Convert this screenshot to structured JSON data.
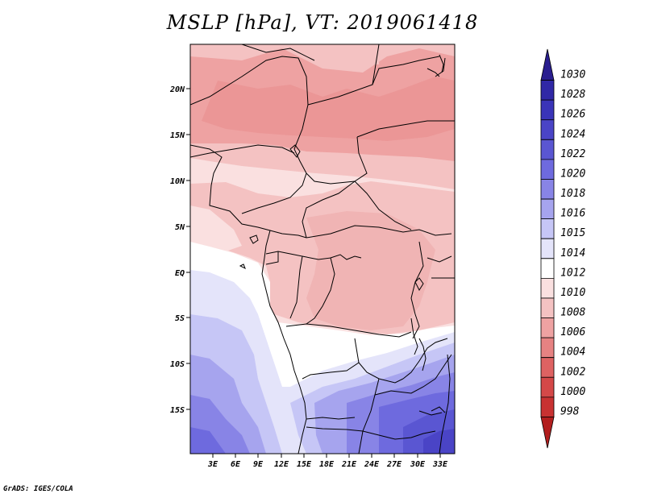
{
  "title": "MSLP [hPa], VT: 2019061418",
  "lat_labels": [
    "20N",
    "15N",
    "10N",
    "5N",
    "EQ",
    "5S",
    "10S",
    "15S"
  ],
  "lon_labels": [
    "3E",
    "6E",
    "9E",
    "12E",
    "15E",
    "18E",
    "21E",
    "24E",
    "27E",
    "30E",
    "33E"
  ],
  "colorbar": {
    "labels": [
      "1030",
      "1028",
      "1026",
      "1024",
      "1022",
      "1020",
      "1018",
      "1016",
      "1015",
      "1014",
      "1012",
      "1010",
      "1008",
      "1006",
      "1004",
      "1002",
      "1000",
      "998"
    ],
    "colors": [
      "#2a1e8f",
      "#3028a6",
      "#3a34b8",
      "#4a44c6",
      "#5a56d2",
      "#6e6ade",
      "#8884e6",
      "#a6a4ee",
      "#c6c6f6",
      "#e4e4fa",
      "#ffffff",
      "#fae0e0",
      "#f4c2c2",
      "#eea2a2",
      "#e68282",
      "#de6262",
      "#d44848",
      "#c83232",
      "#b21e1e"
    ]
  },
  "footer": "GrADS: IGES/COLA"
}
